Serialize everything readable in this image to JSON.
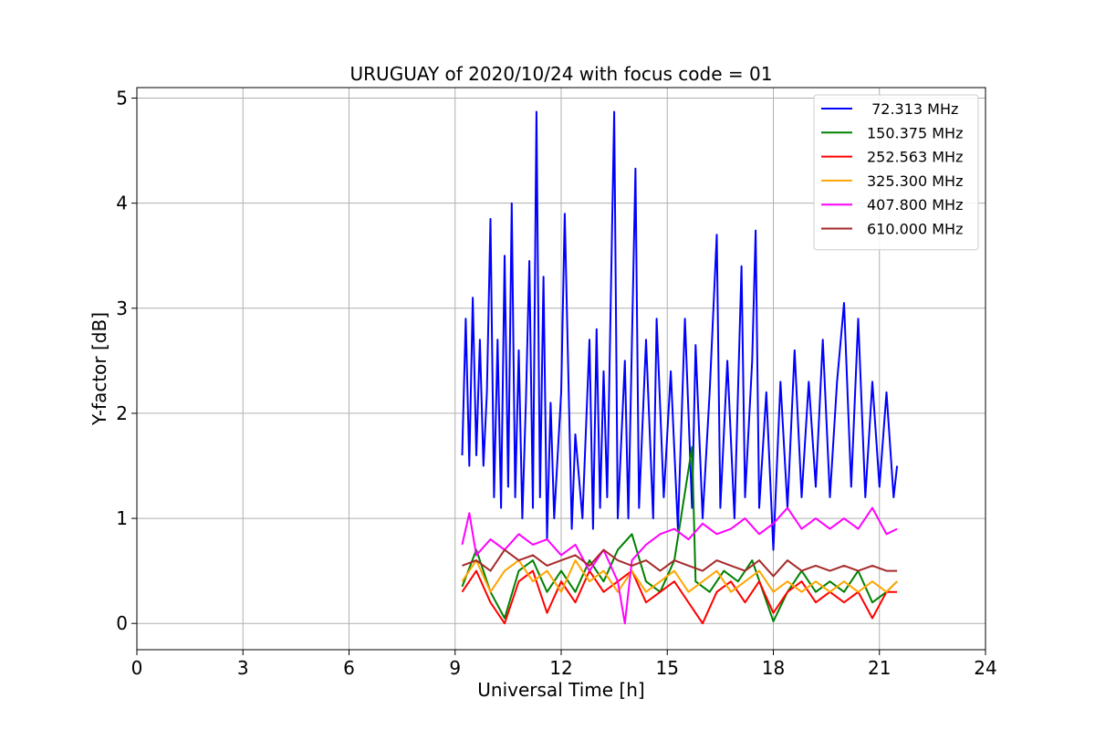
{
  "chart_data": {
    "type": "line",
    "title": "URUGUAY of 2020/10/24 with focus code = 01",
    "xlabel": "Universal Time [h]",
    "ylabel": "Y-factor [dB]",
    "xlim": [
      0,
      24
    ],
    "ylim": [
      -0.25,
      5.1
    ],
    "xticks": [
      "0",
      "3",
      "6",
      "9",
      "12",
      "15",
      "18",
      "21",
      "24"
    ],
    "yticks": [
      "0",
      "1",
      "2",
      "3",
      "4",
      "5"
    ],
    "grid": true,
    "legend_position": "top-right",
    "x_range_of_data": [
      9.2,
      21.5
    ],
    "series": [
      {
        "name": " 72.313 MHz",
        "color": "#0000ff",
        "points": [
          [
            9.2,
            1.6
          ],
          [
            9.3,
            2.9
          ],
          [
            9.4,
            1.5
          ],
          [
            9.5,
            3.1
          ],
          [
            9.6,
            1.6
          ],
          [
            9.7,
            2.7
          ],
          [
            9.8,
            1.5
          ],
          [
            9.9,
            2.2
          ],
          [
            10.0,
            3.85
          ],
          [
            10.1,
            1.2
          ],
          [
            10.2,
            2.7
          ],
          [
            10.3,
            1.1
          ],
          [
            10.4,
            3.5
          ],
          [
            10.5,
            1.3
          ],
          [
            10.6,
            4.0
          ],
          [
            10.7,
            1.2
          ],
          [
            10.8,
            2.6
          ],
          [
            10.9,
            1.0
          ],
          [
            11.0,
            2.1
          ],
          [
            11.1,
            3.45
          ],
          [
            11.2,
            1.1
          ],
          [
            11.3,
            4.87
          ],
          [
            11.4,
            1.2
          ],
          [
            11.5,
            3.3
          ],
          [
            11.6,
            0.8
          ],
          [
            11.7,
            2.1
          ],
          [
            11.8,
            1.0
          ],
          [
            12.0,
            2.2
          ],
          [
            12.1,
            3.9
          ],
          [
            12.3,
            0.9
          ],
          [
            12.4,
            1.8
          ],
          [
            12.6,
            1.0
          ],
          [
            12.8,
            2.7
          ],
          [
            12.9,
            0.9
          ],
          [
            13.0,
            2.8
          ],
          [
            13.1,
            1.1
          ],
          [
            13.2,
            2.4
          ],
          [
            13.3,
            1.2
          ],
          [
            13.5,
            4.87
          ],
          [
            13.6,
            1.0
          ],
          [
            13.8,
            2.5
          ],
          [
            13.9,
            1.0
          ],
          [
            14.1,
            4.33
          ],
          [
            14.2,
            1.1
          ],
          [
            14.4,
            2.7
          ],
          [
            14.6,
            1.0
          ],
          [
            14.7,
            2.9
          ],
          [
            14.9,
            1.2
          ],
          [
            15.1,
            2.4
          ],
          [
            15.3,
            0.9
          ],
          [
            15.5,
            2.9
          ],
          [
            15.7,
            1.1
          ],
          [
            15.8,
            2.65
          ],
          [
            16.0,
            1.0
          ],
          [
            16.2,
            2.2
          ],
          [
            16.4,
            3.7
          ],
          [
            16.5,
            1.1
          ],
          [
            16.7,
            2.5
          ],
          [
            16.9,
            1.0
          ],
          [
            17.1,
            3.4
          ],
          [
            17.2,
            1.2
          ],
          [
            17.4,
            2.5
          ],
          [
            17.5,
            3.74
          ],
          [
            17.6,
            1.1
          ],
          [
            17.8,
            2.2
          ],
          [
            18.0,
            0.7
          ],
          [
            18.2,
            2.3
          ],
          [
            18.4,
            1.1
          ],
          [
            18.6,
            2.6
          ],
          [
            18.8,
            1.2
          ],
          [
            19.0,
            2.3
          ],
          [
            19.2,
            1.3
          ],
          [
            19.4,
            2.7
          ],
          [
            19.6,
            1.2
          ],
          [
            19.8,
            2.3
          ],
          [
            20.0,
            3.05
          ],
          [
            20.2,
            1.3
          ],
          [
            20.4,
            2.9
          ],
          [
            20.6,
            1.2
          ],
          [
            20.8,
            2.3
          ],
          [
            21.0,
            1.3
          ],
          [
            21.2,
            2.2
          ],
          [
            21.4,
            1.2
          ],
          [
            21.5,
            1.5
          ]
        ]
      },
      {
        "name": "150.375 MHz",
        "color": "#008000",
        "points": [
          [
            9.2,
            0.35
          ],
          [
            9.6,
            0.7
          ],
          [
            10.0,
            0.3
          ],
          [
            10.4,
            0.05
          ],
          [
            10.8,
            0.5
          ],
          [
            11.2,
            0.6
          ],
          [
            11.6,
            0.3
          ],
          [
            12.0,
            0.5
          ],
          [
            12.4,
            0.3
          ],
          [
            12.8,
            0.6
          ],
          [
            13.2,
            0.4
          ],
          [
            13.6,
            0.7
          ],
          [
            14.0,
            0.85
          ],
          [
            14.4,
            0.4
          ],
          [
            14.8,
            0.3
          ],
          [
            15.2,
            0.6
          ],
          [
            15.7,
            1.68
          ],
          [
            15.8,
            0.4
          ],
          [
            16.2,
            0.3
          ],
          [
            16.6,
            0.5
          ],
          [
            17.0,
            0.4
          ],
          [
            17.4,
            0.6
          ],
          [
            18.0,
            0.02
          ],
          [
            18.4,
            0.3
          ],
          [
            18.8,
            0.5
          ],
          [
            19.2,
            0.3
          ],
          [
            19.6,
            0.4
          ],
          [
            20.0,
            0.3
          ],
          [
            20.4,
            0.5
          ],
          [
            20.8,
            0.2
          ],
          [
            21.2,
            0.3
          ],
          [
            21.5,
            0.4
          ]
        ]
      },
      {
        "name": "252.563 MHz",
        "color": "#ff0000",
        "points": [
          [
            9.2,
            0.3
          ],
          [
            9.6,
            0.5
          ],
          [
            10.0,
            0.2
          ],
          [
            10.4,
            0.0
          ],
          [
            10.8,
            0.4
          ],
          [
            11.2,
            0.5
          ],
          [
            11.6,
            0.1
          ],
          [
            12.0,
            0.4
          ],
          [
            12.4,
            0.2
          ],
          [
            12.8,
            0.5
          ],
          [
            13.2,
            0.3
          ],
          [
            13.6,
            0.4
          ],
          [
            14.0,
            0.5
          ],
          [
            14.4,
            0.2
          ],
          [
            14.8,
            0.3
          ],
          [
            15.2,
            0.4
          ],
          [
            15.6,
            0.2
          ],
          [
            16.0,
            0.0
          ],
          [
            16.4,
            0.3
          ],
          [
            16.8,
            0.4
          ],
          [
            17.2,
            0.2
          ],
          [
            17.6,
            0.4
          ],
          [
            18.0,
            0.1
          ],
          [
            18.4,
            0.3
          ],
          [
            18.8,
            0.4
          ],
          [
            19.2,
            0.2
          ],
          [
            19.6,
            0.3
          ],
          [
            20.0,
            0.2
          ],
          [
            20.4,
            0.3
          ],
          [
            20.8,
            0.05
          ],
          [
            21.2,
            0.3
          ],
          [
            21.5,
            0.3
          ]
        ]
      },
      {
        "name": "325.300 MHz",
        "color": "#ffa500",
        "points": [
          [
            9.2,
            0.4
          ],
          [
            9.6,
            0.6
          ],
          [
            10.0,
            0.3
          ],
          [
            10.4,
            0.5
          ],
          [
            10.8,
            0.6
          ],
          [
            11.2,
            0.4
          ],
          [
            11.6,
            0.5
          ],
          [
            12.0,
            0.3
          ],
          [
            12.4,
            0.6
          ],
          [
            12.8,
            0.4
          ],
          [
            13.2,
            0.5
          ],
          [
            13.6,
            0.3
          ],
          [
            14.0,
            0.5
          ],
          [
            14.4,
            0.3
          ],
          [
            14.8,
            0.4
          ],
          [
            15.2,
            0.5
          ],
          [
            15.6,
            0.3
          ],
          [
            16.0,
            0.4
          ],
          [
            16.4,
            0.5
          ],
          [
            16.8,
            0.3
          ],
          [
            17.2,
            0.4
          ],
          [
            17.6,
            0.5
          ],
          [
            18.0,
            0.3
          ],
          [
            18.4,
            0.4
          ],
          [
            18.8,
            0.3
          ],
          [
            19.2,
            0.4
          ],
          [
            19.6,
            0.3
          ],
          [
            20.0,
            0.4
          ],
          [
            20.4,
            0.3
          ],
          [
            20.8,
            0.4
          ],
          [
            21.2,
            0.3
          ],
          [
            21.5,
            0.4
          ]
        ]
      },
      {
        "name": "407.800 MHz",
        "color": "#ff00ff",
        "points": [
          [
            9.2,
            0.75
          ],
          [
            9.4,
            1.05
          ],
          [
            9.6,
            0.65
          ],
          [
            10.0,
            0.8
          ],
          [
            10.4,
            0.7
          ],
          [
            10.8,
            0.85
          ],
          [
            11.2,
            0.75
          ],
          [
            11.6,
            0.8
          ],
          [
            12.0,
            0.65
          ],
          [
            12.4,
            0.75
          ],
          [
            12.8,
            0.5
          ],
          [
            13.2,
            0.7
          ],
          [
            13.6,
            0.4
          ],
          [
            13.8,
            0.0
          ],
          [
            14.0,
            0.6
          ],
          [
            14.4,
            0.75
          ],
          [
            14.8,
            0.85
          ],
          [
            15.2,
            0.9
          ],
          [
            15.6,
            0.8
          ],
          [
            16.0,
            0.95
          ],
          [
            16.4,
            0.85
          ],
          [
            16.8,
            0.9
          ],
          [
            17.2,
            1.0
          ],
          [
            17.6,
            0.85
          ],
          [
            18.0,
            0.95
          ],
          [
            18.4,
            1.1
          ],
          [
            18.8,
            0.9
          ],
          [
            19.2,
            1.0
          ],
          [
            19.6,
            0.9
          ],
          [
            20.0,
            1.0
          ],
          [
            20.4,
            0.9
          ],
          [
            20.8,
            1.1
          ],
          [
            21.2,
            0.85
          ],
          [
            21.5,
            0.9
          ]
        ]
      },
      {
        "name": "610.000 MHz",
        "color": "#a52a2a",
        "points": [
          [
            9.2,
            0.55
          ],
          [
            9.6,
            0.6
          ],
          [
            10.0,
            0.5
          ],
          [
            10.4,
            0.7
          ],
          [
            10.8,
            0.6
          ],
          [
            11.2,
            0.65
          ],
          [
            11.6,
            0.55
          ],
          [
            12.0,
            0.6
          ],
          [
            12.4,
            0.65
          ],
          [
            12.8,
            0.55
          ],
          [
            13.2,
            0.7
          ],
          [
            13.6,
            0.6
          ],
          [
            14.0,
            0.55
          ],
          [
            14.4,
            0.6
          ],
          [
            14.8,
            0.5
          ],
          [
            15.2,
            0.6
          ],
          [
            15.6,
            0.55
          ],
          [
            16.0,
            0.5
          ],
          [
            16.4,
            0.6
          ],
          [
            16.8,
            0.55
          ],
          [
            17.2,
            0.5
          ],
          [
            17.6,
            0.6
          ],
          [
            18.0,
            0.45
          ],
          [
            18.4,
            0.6
          ],
          [
            18.8,
            0.5
          ],
          [
            19.2,
            0.55
          ],
          [
            19.6,
            0.5
          ],
          [
            20.0,
            0.55
          ],
          [
            20.4,
            0.5
          ],
          [
            20.8,
            0.55
          ],
          [
            21.2,
            0.5
          ],
          [
            21.5,
            0.5
          ]
        ]
      }
    ]
  }
}
